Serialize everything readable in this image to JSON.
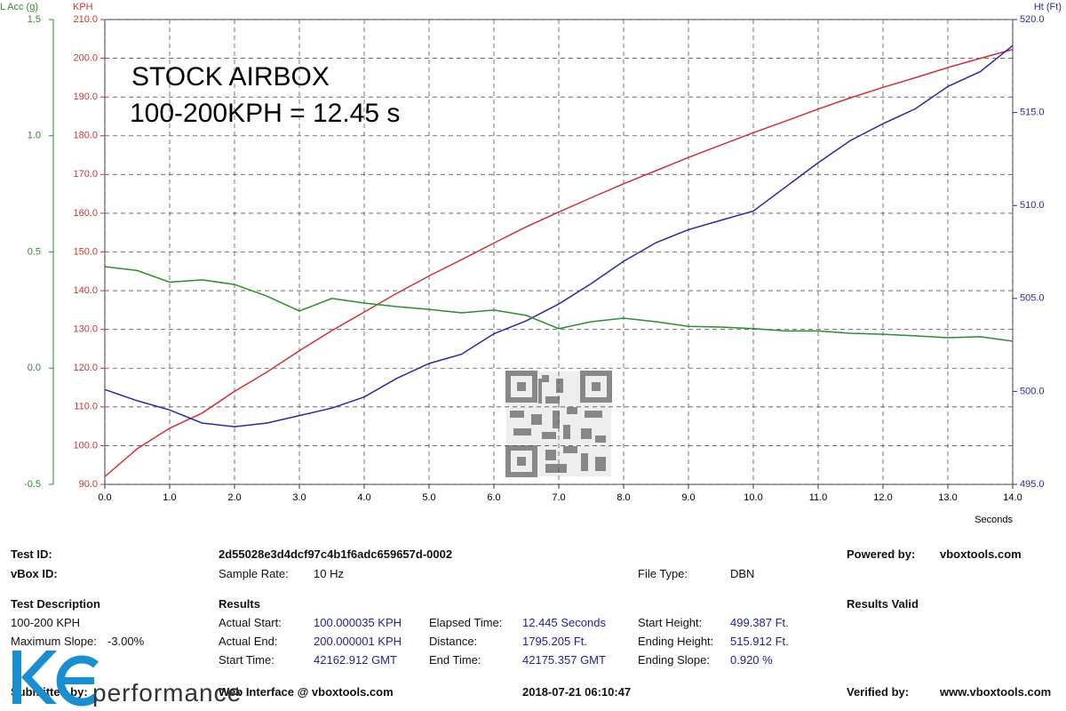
{
  "chart_data": {
    "type": "line",
    "annotations": [
      "STOCK AIRBOX",
      "100-200KPH = 12.45 s"
    ],
    "xlabel": "Seconds",
    "ylabel": "KPH",
    "y2label": "Ht (Ft)",
    "y3label": "L Acc (g)",
    "grid": true,
    "x": [
      0,
      0.5,
      1,
      1.5,
      2,
      2.5,
      3,
      3.5,
      4,
      4.5,
      5,
      5.5,
      6,
      6.5,
      7,
      7.5,
      8,
      8.5,
      9,
      9.5,
      10,
      10.5,
      11,
      11.5,
      12,
      12.5,
      13,
      13.5,
      14
    ],
    "xlim": [
      0,
      14
    ],
    "xticks": [
      {
        "value": 0,
        "label": "0.0"
      },
      {
        "value": 1,
        "label": "1.0"
      },
      {
        "value": 2,
        "label": "2.0"
      },
      {
        "value": 3,
        "label": "3.0"
      },
      {
        "value": 4,
        "label": "4.0"
      },
      {
        "value": 5,
        "label": "5.0"
      },
      {
        "value": 6,
        "label": "6.0"
      },
      {
        "value": 7,
        "label": "7.0"
      },
      {
        "value": 8,
        "label": "8.0"
      },
      {
        "value": 9,
        "label": "9.0"
      },
      {
        "value": 10,
        "label": "10.0"
      },
      {
        "value": 11,
        "label": "11.0"
      },
      {
        "value": 12,
        "label": "12.0"
      },
      {
        "value": 13,
        "label": "13.0"
      },
      {
        "value": 14,
        "label": "14.0"
      }
    ],
    "ylim": [
      90,
      210
    ],
    "yticks": [
      {
        "value": 90,
        "label": "90.0"
      },
      {
        "value": 100,
        "label": "100.0"
      },
      {
        "value": 110,
        "label": "110.0"
      },
      {
        "value": 120,
        "label": "120.0"
      },
      {
        "value": 130,
        "label": "130.0"
      },
      {
        "value": 140,
        "label": "140.0"
      },
      {
        "value": 150,
        "label": "150.0"
      },
      {
        "value": 160,
        "label": "160.0"
      },
      {
        "value": 170,
        "label": "170.0"
      },
      {
        "value": 180,
        "label": "180.0"
      },
      {
        "value": 190,
        "label": "190.0"
      },
      {
        "value": 200,
        "label": "200.0"
      },
      {
        "value": 210,
        "label": "210.0"
      }
    ],
    "y2lim": [
      495,
      520
    ],
    "y2ticks": [
      {
        "value": 495,
        "label": "495.0"
      },
      {
        "value": 500,
        "label": "500.0"
      },
      {
        "value": 505,
        "label": "505.0"
      },
      {
        "value": 510,
        "label": "510.0"
      },
      {
        "value": 515,
        "label": "515.0"
      },
      {
        "value": 520,
        "label": "520.0"
      }
    ],
    "y3lim": [
      -0.5,
      1.5
    ],
    "y3ticks": [
      -0.5,
      {
        "value": 0,
        "label": "0.0"
      },
      0.5,
      {
        "value": 1,
        "label": "1.0"
      },
      1.5
    ],
    "series": [
      {
        "color": "#cc3333",
        "axis": "y",
        "values": [
          92,
          99.2,
          104.5,
          108.4,
          114,
          119,
          124.5,
          129.7,
          134.5,
          139.3,
          143.8,
          148,
          152.3,
          156.5,
          160.3,
          164,
          167.6,
          171,
          174.4,
          177.6,
          180.8,
          183.8,
          186.9,
          189.8,
          192.5,
          195,
          197.6,
          200,
          202.3
        ]
      },
      {
        "color": "#2a2aa0",
        "axis": "y2",
        "values": [
          500.1,
          499.5,
          499.0,
          498.3,
          498.1,
          498.3,
          498.7,
          499.1,
          499.7,
          500.7,
          501.5,
          502.0,
          503.1,
          503.8,
          504.7,
          505.8,
          507.0,
          508.0,
          508.7,
          509.2,
          509.7,
          511.0,
          512.3,
          513.5,
          514.4,
          515.2,
          516.4,
          517.2,
          518.6
        ]
      },
      {
        "color": "#2e8b2e",
        "axis": "y3",
        "values": [
          0.437,
          0.42,
          0.37,
          0.38,
          0.36,
          0.31,
          0.246,
          0.3,
          0.28,
          0.265,
          0.253,
          0.238,
          0.25,
          0.227,
          0.17,
          0.2,
          0.215,
          0.2,
          0.18,
          0.177,
          0.17,
          0.16,
          0.16,
          0.15,
          0.146,
          0.139,
          0.131,
          0.135,
          0.116
        ]
      }
    ]
  },
  "report": {
    "test_id_label": "Test ID:",
    "test_id": "2d55028e3d4dcf97c4b1f6adc659657d-0002",
    "vbox_id_label": "vBox ID:",
    "sample_rate_label": "Sample Rate:",
    "sample_rate": "10 Hz",
    "file_type_label": "File Type:",
    "file_type": "DBN",
    "powered_by_label": "Powered by:",
    "powered_by": "vboxtools.com",
    "test_description_label": "Test Description",
    "test_description": "100-200 KPH",
    "max_slope_label": "Maximum Slope:",
    "max_slope": "-3.00%",
    "results_label": "Results",
    "results_valid": "Results Valid",
    "results": [
      [
        "Actual Start:",
        "100.000035 KPH",
        "Elapsed Time:",
        "12.445 Seconds",
        "Start Height:",
        "499.387 Ft."
      ],
      [
        "Actual End:",
        "200.000001 KPH",
        "Distance:",
        "1795.205 Ft.",
        "Ending Height:",
        "515.912 Ft."
      ],
      [
        "Start Time:",
        "42162.912 GMT",
        "End Time:",
        "42175.357 GMT",
        "Ending Slope:",
        "0.920 %"
      ]
    ],
    "submitted_by_label": "Submitted by:",
    "web_interface": "Web Interface @ vboxtools.com",
    "date": "2018-07-21 06:10:47",
    "verified_by_label": "Verified by:",
    "verified_by": "www.vboxtools.com",
    "logo": "performance"
  }
}
